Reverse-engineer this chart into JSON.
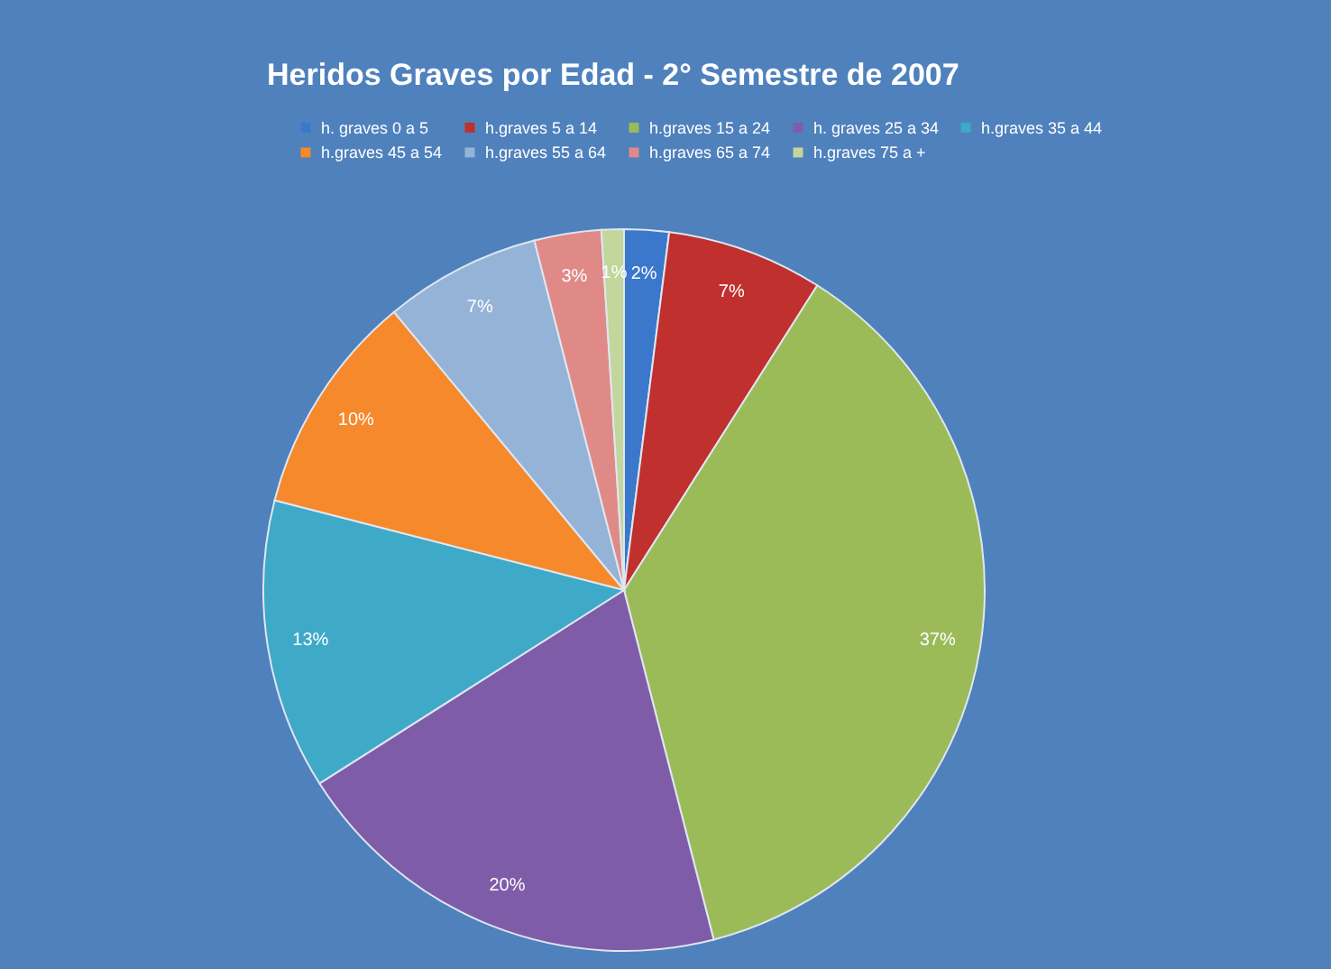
{
  "chart_data": {
    "type": "pie",
    "title": "Heridos  Graves por Edad - 2° Semestre de 2007",
    "categories": [
      "h. graves 0 a 5",
      "h.graves 5 a 14",
      "h.graves 15 a 24",
      "h. graves 25 a 34",
      "h.graves 35 a 44",
      "h.graves 45 a 54",
      "h.graves 55 a 64",
      "h.graves 65 a 74",
      "h.graves 75 a +"
    ],
    "values": [
      2,
      7,
      37,
      20,
      13,
      10,
      7,
      3,
      1
    ],
    "value_labels": [
      "2%",
      "7%",
      "37%",
      "20%",
      "13%",
      "10%",
      "7%",
      "3%",
      "1%"
    ],
    "colors": [
      "#3b78cc",
      "#c0302e",
      "#9bbb59",
      "#7f5ca8",
      "#3fa9c8",
      "#f5892b",
      "#95b3d7",
      "#e08a88",
      "#c3d69b"
    ],
    "legend": "top"
  }
}
